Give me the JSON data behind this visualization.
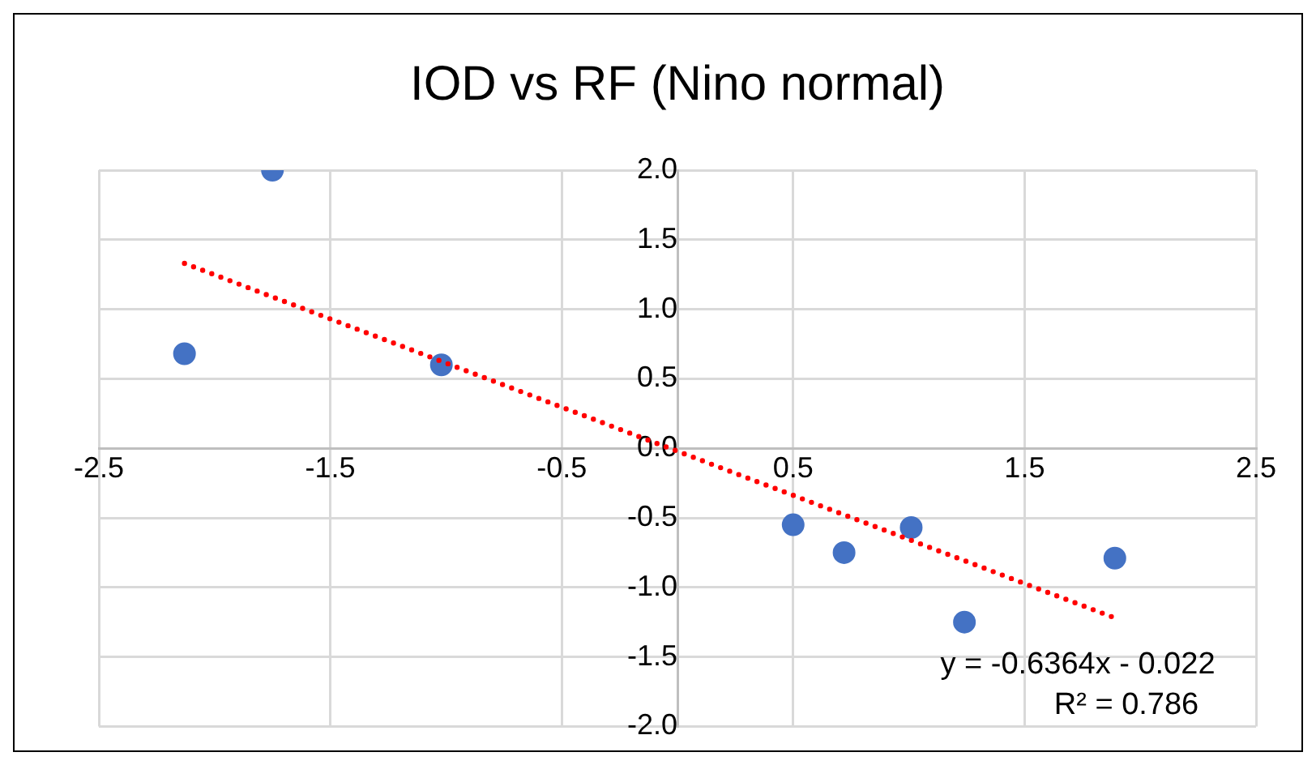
{
  "chart_data": {
    "type": "scatter",
    "title": "IOD vs RF (Nino normal)",
    "x": [
      -2.13,
      -1.75,
      -1.02,
      0.5,
      0.72,
      1.01,
      1.24,
      1.89
    ],
    "series": [
      {
        "type": "scatter",
        "color": "#4472c4",
        "marker": "circle",
        "values": [
          0.68,
          2.0,
          0.6,
          -0.55,
          -0.75,
          -0.57,
          -1.25,
          -0.79
        ]
      },
      {
        "type": "line",
        "color": "#ff0000",
        "line_style": "dotted",
        "marker": "none",
        "x": [
          -2.13,
          1.89
        ],
        "values": [
          1.33,
          -1.22
        ]
      }
    ],
    "xlim": [
      -2.5,
      2.5
    ],
    "xticks": [
      -2.5,
      -1.5,
      -0.5,
      0.5,
      1.5,
      2.5
    ],
    "ylim": [
      -2,
      2
    ],
    "yticks": [
      {
        "value": -2,
        "label": "-2.0"
      },
      {
        "value": -1.5,
        "label": "-1.5"
      },
      {
        "value": -1,
        "label": "-1.0"
      },
      {
        "value": -0.5,
        "label": "-0.5"
      },
      {
        "value": 0,
        "label": "0.0"
      },
      {
        "value": 0.5,
        "label": "0.5"
      },
      {
        "value": 1,
        "label": "1.0"
      },
      {
        "value": 1.5,
        "label": "1.5"
      },
      {
        "value": 2,
        "label": "2.0"
      }
    ],
    "annotations": [
      "y = -0.6364x - 0.022",
      "R² = 0.786"
    ],
    "grid": true,
    "legend": false
  }
}
